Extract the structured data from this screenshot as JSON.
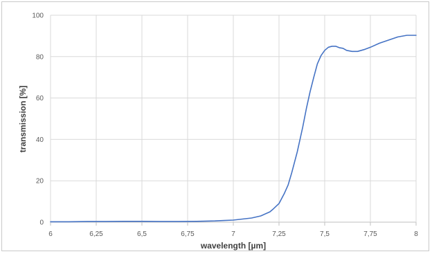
{
  "chart_data": {
    "type": "line",
    "title": "",
    "xlabel": "wavelength [µm]",
    "ylabel": "transmission [%]",
    "xlim": [
      6,
      8
    ],
    "ylim": [
      0,
      100
    ],
    "grid": true,
    "legend": "none",
    "x_ticks": [
      {
        "value": 6,
        "label": "6"
      },
      {
        "value": 6.25,
        "label": "6,25"
      },
      {
        "value": 6.5,
        "label": "6,5"
      },
      {
        "value": 6.75,
        "label": "6,75"
      },
      {
        "value": 7,
        "label": "7"
      },
      {
        "value": 7.25,
        "label": "7,25"
      },
      {
        "value": 7.5,
        "label": "7,5"
      },
      {
        "value": 7.75,
        "label": "7,75"
      },
      {
        "value": 8,
        "label": "8"
      }
    ],
    "y_ticks": [
      {
        "value": 0,
        "label": "0"
      },
      {
        "value": 20,
        "label": "20"
      },
      {
        "value": 40,
        "label": "40"
      },
      {
        "value": 60,
        "label": "60"
      },
      {
        "value": 80,
        "label": "80"
      },
      {
        "value": 100,
        "label": "100"
      }
    ],
    "series": [
      {
        "color": "#4472c4",
        "x": [
          6.0,
          6.1,
          6.2,
          6.3,
          6.4,
          6.5,
          6.6,
          6.7,
          6.8,
          6.9,
          6.95,
          7.0,
          7.05,
          7.1,
          7.15,
          7.2,
          7.22,
          7.25,
          7.28,
          7.3,
          7.32,
          7.35,
          7.38,
          7.4,
          7.42,
          7.44,
          7.46,
          7.48,
          7.5,
          7.52,
          7.54,
          7.56,
          7.58,
          7.6,
          7.62,
          7.65,
          7.68,
          7.7,
          7.72,
          7.75,
          7.8,
          7.85,
          7.9,
          7.95,
          8.0
        ],
        "y": [
          0.2,
          0.2,
          0.3,
          0.3,
          0.4,
          0.4,
          0.3,
          0.3,
          0.4,
          0.6,
          0.8,
          1.0,
          1.5,
          2.0,
          3.0,
          5.0,
          6.5,
          9.0,
          14.0,
          18.0,
          24.0,
          34.0,
          46.0,
          55.0,
          63.0,
          70.0,
          76.5,
          80.5,
          83.0,
          84.5,
          85.0,
          85.0,
          84.3,
          84.0,
          83.0,
          82.5,
          82.5,
          83.0,
          83.5,
          84.5,
          86.5,
          88.0,
          89.5,
          90.3,
          90.3
        ]
      }
    ]
  }
}
